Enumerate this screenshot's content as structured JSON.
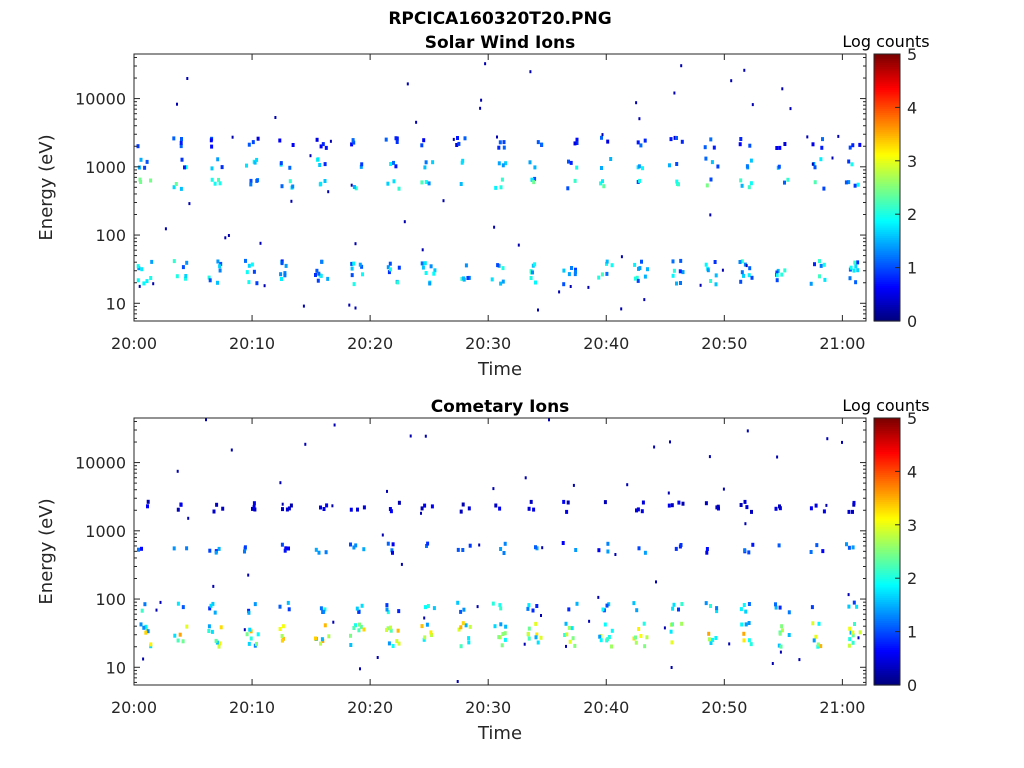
{
  "figure_title": "RPCICA160320T20.PNG",
  "colormap": [
    "#00007f",
    "#0000ff",
    "#007fff",
    "#00ffff",
    "#7fff7f",
    "#ffff00",
    "#ff7f00",
    "#ff0000",
    "#7f0000"
  ],
  "chart_data": [
    {
      "type": "heatmap",
      "title": "Solar Wind Ions",
      "xlabel": "Time",
      "ylabel": "Energy (eV)",
      "x_ticks": [
        "20:00",
        "20:10",
        "20:20",
        "20:30",
        "20:40",
        "20:50",
        "21:00"
      ],
      "x_range": [
        "20:00",
        "21:02"
      ],
      "y_scale": "log",
      "y_ticks": [
        "10",
        "100",
        "1000",
        "10000"
      ],
      "y_range": [
        5.5,
        45000
      ],
      "colorbar_label": "Log counts",
      "colorbar_ticks": [
        "0",
        "1",
        "2",
        "3",
        "4",
        "5"
      ],
      "colorbar_range": [
        0,
        5
      ],
      "sweep_interval_min": 3,
      "bands": [
        {
          "energy_eV": 30,
          "max_log_counts": 2.2
        },
        {
          "energy_eV": 600,
          "max_log_counts": 2.6
        },
        {
          "energy_eV": 1200,
          "max_log_counts": 2.0
        },
        {
          "energy_eV": 2400,
          "max_log_counts": 1.2
        }
      ]
    },
    {
      "type": "heatmap",
      "title": "Cometary Ions",
      "xlabel": "Time",
      "ylabel": "Energy (eV)",
      "x_ticks": [
        "20:00",
        "20:10",
        "20:20",
        "20:30",
        "20:40",
        "20:50",
        "21:00"
      ],
      "x_range": [
        "20:00",
        "21:02"
      ],
      "y_scale": "log",
      "y_ticks": [
        "10",
        "100",
        "1000",
        "10000"
      ],
      "y_range": [
        5.5,
        45000
      ],
      "colorbar_label": "Log counts",
      "colorbar_ticks": [
        "0",
        "1",
        "2",
        "3",
        "4",
        "5"
      ],
      "colorbar_range": [
        0,
        5
      ],
      "sweep_interval_min": 3,
      "bands": [
        {
          "energy_eV": 32,
          "max_log_counts": 3.6
        },
        {
          "energy_eV": 80,
          "max_log_counts": 2.2
        },
        {
          "energy_eV": 600,
          "max_log_counts": 1.5
        },
        {
          "energy_eV": 2400,
          "max_log_counts": 0.6
        }
      ]
    }
  ]
}
